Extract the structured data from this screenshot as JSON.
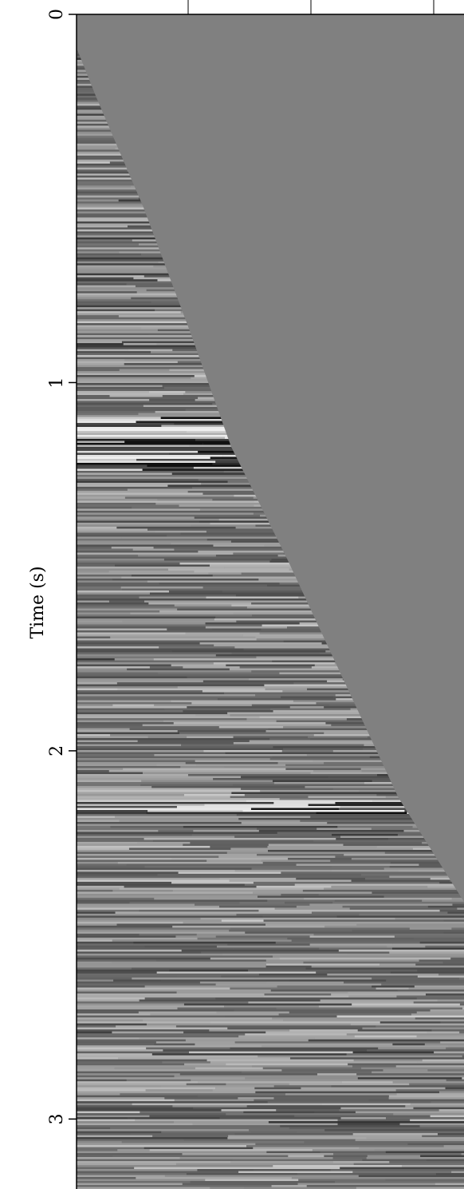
{
  "chart_data": {
    "type": "seismic",
    "y_label": "Time (s)",
    "ylim": [
      0,
      3.19
    ],
    "yticks": [
      0,
      1,
      2,
      3
    ],
    "y_inverted": true
  }
}
